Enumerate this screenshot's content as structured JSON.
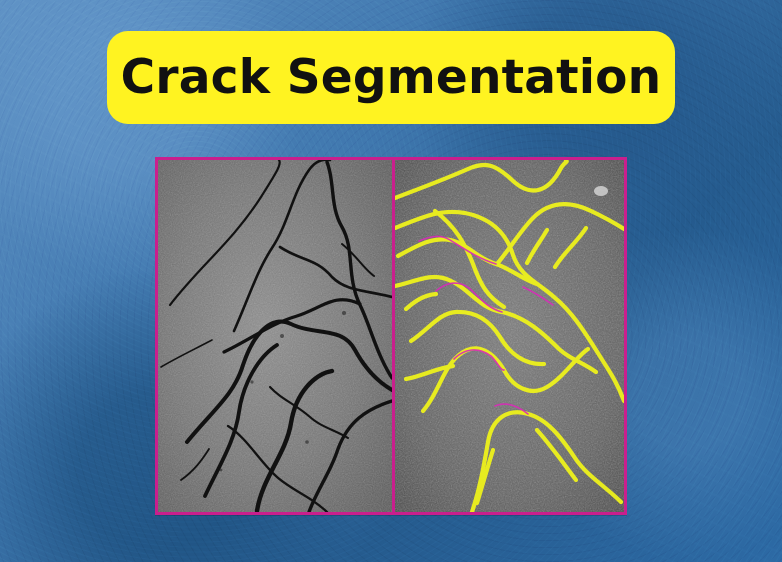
{
  "title": {
    "text": "Crack Segmentation"
  },
  "colors": {
    "background": "#2f6ea8",
    "title_background": "#fff321",
    "title_text": "#111111",
    "frame": "#c91f8d",
    "segmentation_overlay": "#e8ef1b"
  }
}
